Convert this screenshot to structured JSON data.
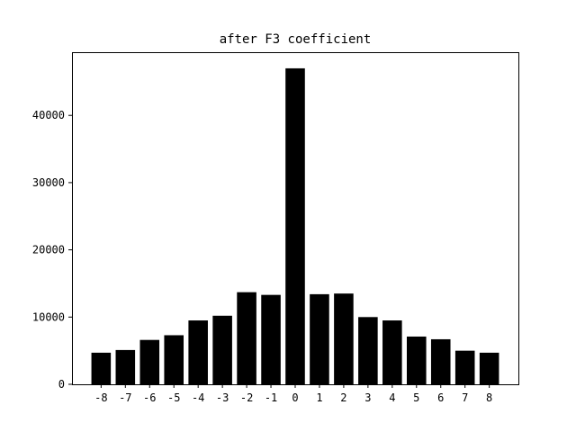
{
  "chart_data": {
    "type": "bar",
    "title": "after F3 coefficient",
    "xlabel": "",
    "ylabel": "",
    "categories": [
      "-8",
      "-7",
      "-6",
      "-5",
      "-4",
      "-3",
      "-2",
      "-1",
      "0",
      "1",
      "2",
      "3",
      "4",
      "5",
      "6",
      "7",
      "8"
    ],
    "x": [
      -8,
      -7,
      -6,
      -5,
      -4,
      -3,
      -2,
      -1,
      0,
      1,
      2,
      3,
      4,
      5,
      6,
      7,
      8
    ],
    "values": [
      4700,
      5100,
      6600,
      7300,
      9500,
      10200,
      13700,
      13300,
      47000,
      13400,
      13500,
      10000,
      9500,
      7100,
      6700,
      5000,
      4700
    ],
    "ylim": [
      0,
      49400
    ],
    "xlim": [
      -9.2,
      9.2
    ],
    "yticks": [
      0,
      10000,
      20000,
      30000,
      40000
    ],
    "ytick_labels": [
      "0",
      "10000",
      "20000",
      "30000",
      "40000"
    ],
    "xtick_labels": [
      "-8",
      "-7",
      "-6",
      "-5",
      "-4",
      "-3",
      "-2",
      "-1",
      "0",
      "1",
      "2",
      "3",
      "4",
      "5",
      "6",
      "7",
      "8"
    ],
    "bar_color": "#000000",
    "bar_width": 0.8,
    "grid": false,
    "legend": "none"
  }
}
